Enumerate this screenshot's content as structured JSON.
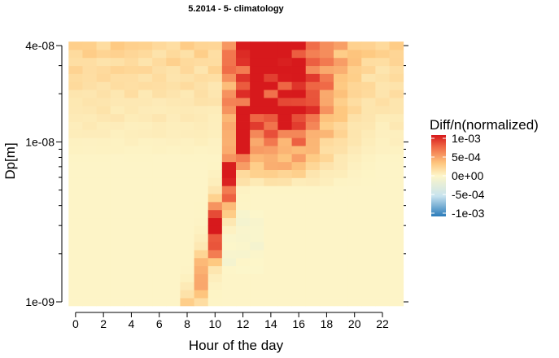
{
  "chart_data": {
    "type": "heatmap",
    "title": "5.2014 - 5- climatology",
    "xlabel": "Hour of the day",
    "ylabel": "Dp[m]",
    "x_ticks": [
      "0",
      "2",
      "4",
      "6",
      "8",
      "10",
      "12",
      "14",
      "16",
      "18",
      "20",
      "22"
    ],
    "y_ticks": [
      "1e-09",
      "1e-08",
      "4e-08"
    ],
    "y_scale": "log10",
    "xlim": [
      -0.75,
      23.75
    ],
    "ylim": [
      9e-10,
      5e-08
    ],
    "cell_x_range": [
      0,
      23
    ],
    "cell_y_range": [
      1e-09,
      4e-08
    ],
    "n_hours": 24,
    "n_bins": 33,
    "color_scale": {
      "colors": [
        "#2b7bba",
        "#c7e3ee",
        "#fdf6c9",
        "#fec880",
        "#f06b47",
        "#d7191c"
      ],
      "domain": [
        -0.001,
        0.001
      ]
    },
    "legend": {
      "title": "Diff/n(normalized)",
      "labels": [
        "1e-03",
        "5e-04",
        "0e+00",
        "-5e-04",
        "-1e-03"
      ],
      "values": [
        0.001,
        0.0005,
        0,
        -0.0005,
        -0.001
      ]
    },
    "pattern_description": {
      "background": 1e-05,
      "upper_band_value": 0.0002,
      "banana_peak": 0.0011,
      "afternoon_peak": 0.0011
    }
  }
}
